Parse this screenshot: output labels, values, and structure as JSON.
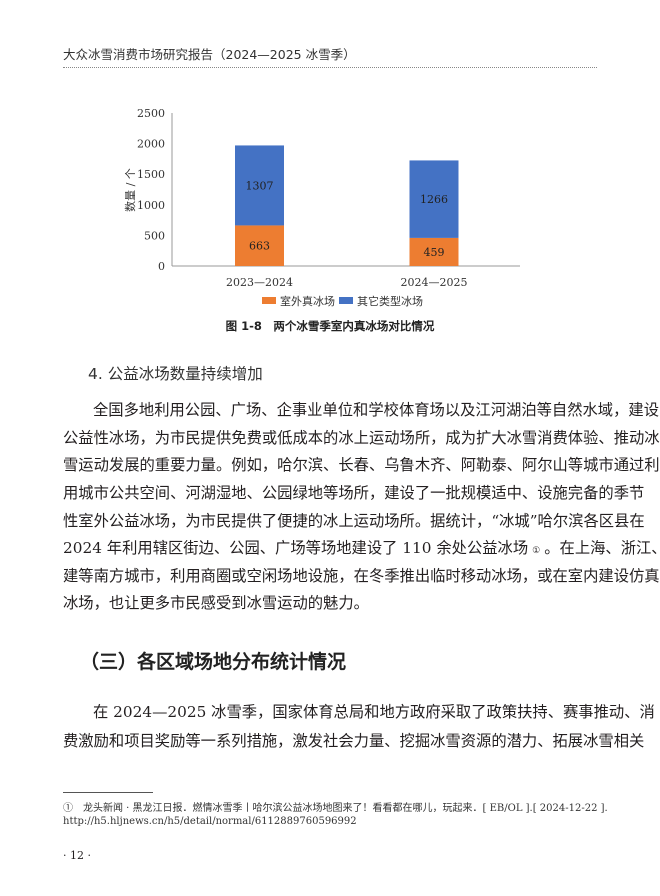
{
  "header": {
    "title": "大众冰雪消费市场研究报告（2024—2025 冰雪季）"
  },
  "figure": {
    "caption": "图 1-8　两个冰雪季室内真冰场对比情况"
  },
  "chart_data": {
    "type": "bar",
    "stacked": true,
    "categories": [
      "2023—2024",
      "2024—2025"
    ],
    "series": [
      {
        "name": "室外真冰场",
        "values": [
          663,
          459
        ],
        "color": "#ED7D31"
      },
      {
        "name": "其它类型冰场",
        "values": [
          1307,
          1266
        ],
        "color": "#4472C4"
      }
    ],
    "ylabel": "数量 / 个",
    "ylim": [
      0,
      2500
    ],
    "yticks": [
      "0",
      "500",
      "1000",
      "1500",
      "2000",
      "2500"
    ],
    "grid": false,
    "legend": "bottom"
  },
  "section4": {
    "heading": "4. 公益冰场数量持续增加",
    "lines": [
      "全国多地利用公园、广场、企事业单位和学校体育场以及江河湖泊等自然水域，建设",
      "公益性冰场，为市民提供免费或低成本的冰上运动场所，成为扩大冰雪消费体验、推动冰",
      "雪运动发展的重要力量。例如，哈尔滨、长春、乌鲁木齐、阿勒泰、阿尔山等城市通过利",
      "用城市公共空间、河湖湿地、公园绿地等场所，建设了一批规模适中、设施完备的季节",
      "性室外公益冰场，为市民提供了便捷的冰上运动场所。据统计，“冰城”哈尔滨各区县在",
      "2024 年利用辖区街边、公园、广场等场地建设了 110 余处公益冰场",
      "建等南方城市，利用商圈或空闲场地设施，在冬季推出临时移动冰场，或在室内建设仿真",
      "冰场，也让更多市民感受到冰雪运动的魅力。"
    ],
    "footnote_mark": "①",
    "line6_tail": "。在上海、浙江、福"
  },
  "section3": {
    "heading": "（三）各区域场地分布统计情况",
    "lines": [
      "在 2024—2025 冰雪季，国家体育总局和地方政府采取了政策扶持、赛事推动、消",
      "费激励和项目奖励等一系列措施，激发社会力量、挖掘冰雪资源的潜力、拓展冰雪相关"
    ]
  },
  "footnote": {
    "line1": "①　龙头新闻 · 黑龙江日报．燃情冰雪季丨哈尔滨公益冰场地图来了！看看都在哪儿，玩起来．[ EB/OL ].[ 2024-12-22 ].",
    "line2": "http://h5.hljnews.cn/h5/detail/normal/6112889760596992"
  },
  "page_number": "· 12 ·"
}
